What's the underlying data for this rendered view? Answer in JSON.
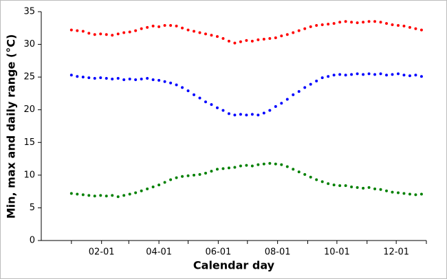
{
  "chart_data": {
    "type": "scatter",
    "xlabel": "Calendar day",
    "ylabel": "Min, max and daily range (°C)",
    "xlim": [
      -30,
      366
    ],
    "ylim": [
      0,
      35
    ],
    "yticks": [
      0,
      5,
      10,
      15,
      20,
      25,
      30,
      35
    ],
    "xticks": [
      {
        "value": 32,
        "label": "02-01"
      },
      {
        "value": 91,
        "label": "04-01"
      },
      {
        "value": 152,
        "label": "06-01"
      },
      {
        "value": 213,
        "label": "08-01"
      },
      {
        "value": 274,
        "label": "10-01"
      },
      {
        "value": 335,
        "label": "12-01"
      }
    ],
    "xminorticks": [
      1,
      60,
      121,
      182,
      244,
      305,
      366
    ],
    "x": [
      1,
      7,
      13,
      19,
      25,
      31,
      37,
      43,
      49,
      55,
      61,
      67,
      73,
      79,
      85,
      91,
      97,
      103,
      109,
      115,
      121,
      127,
      133,
      139,
      145,
      151,
      157,
      163,
      169,
      175,
      181,
      187,
      193,
      199,
      205,
      211,
      217,
      223,
      229,
      235,
      241,
      247,
      253,
      259,
      265,
      271,
      277,
      283,
      289,
      295,
      301,
      307,
      313,
      319,
      325,
      331,
      337,
      343,
      349,
      355,
      361
    ],
    "series": [
      {
        "color": "#ff0000",
        "values": [
          32.2,
          32.1,
          32.0,
          31.7,
          31.5,
          31.6,
          31.5,
          31.4,
          31.6,
          31.8,
          31.9,
          32.1,
          32.4,
          32.6,
          32.8,
          32.7,
          32.9,
          32.9,
          32.8,
          32.5,
          32.2,
          32.0,
          31.8,
          31.6,
          31.4,
          31.2,
          30.9,
          30.5,
          30.2,
          30.4,
          30.6,
          30.5,
          30.7,
          30.8,
          30.9,
          31.0,
          31.3,
          31.5,
          31.8,
          32.1,
          32.4,
          32.7,
          32.9,
          33.0,
          33.1,
          33.2,
          33.4,
          33.5,
          33.4,
          33.3,
          33.4,
          33.5,
          33.5,
          33.4,
          33.2,
          33.0,
          32.9,
          32.8,
          32.6,
          32.4,
          32.2
        ]
      },
      {
        "color": "#0000ff",
        "values": [
          25.3,
          25.1,
          25.0,
          24.9,
          24.8,
          24.9,
          24.8,
          24.7,
          24.8,
          24.6,
          24.7,
          24.6,
          24.7,
          24.8,
          24.6,
          24.5,
          24.3,
          24.1,
          23.8,
          23.4,
          22.9,
          22.3,
          21.8,
          21.2,
          20.8,
          20.3,
          19.9,
          19.4,
          19.2,
          19.3,
          19.2,
          19.3,
          19.2,
          19.5,
          19.9,
          20.5,
          21.0,
          21.6,
          22.3,
          22.8,
          23.4,
          23.9,
          24.4,
          24.9,
          25.1,
          25.3,
          25.4,
          25.3,
          25.4,
          25.5,
          25.4,
          25.5,
          25.4,
          25.5,
          25.3,
          25.4,
          25.5,
          25.3,
          25.2,
          25.3,
          25.1
        ]
      },
      {
        "color": "#008000",
        "values": [
          7.2,
          7.1,
          7.0,
          6.9,
          6.8,
          6.9,
          6.8,
          6.9,
          6.7,
          6.9,
          7.1,
          7.3,
          7.6,
          7.9,
          8.2,
          8.5,
          8.9,
          9.3,
          9.6,
          9.8,
          9.9,
          10.0,
          10.1,
          10.3,
          10.6,
          10.9,
          11.0,
          11.1,
          11.2,
          11.4,
          11.5,
          11.4,
          11.6,
          11.7,
          11.8,
          11.7,
          11.6,
          11.3,
          10.9,
          10.5,
          10.1,
          9.7,
          9.3,
          9.0,
          8.7,
          8.5,
          8.4,
          8.4,
          8.2,
          8.1,
          8.0,
          8.1,
          7.9,
          7.8,
          7.6,
          7.4,
          7.3,
          7.2,
          7.1,
          7.0,
          7.1
        ]
      }
    ]
  }
}
